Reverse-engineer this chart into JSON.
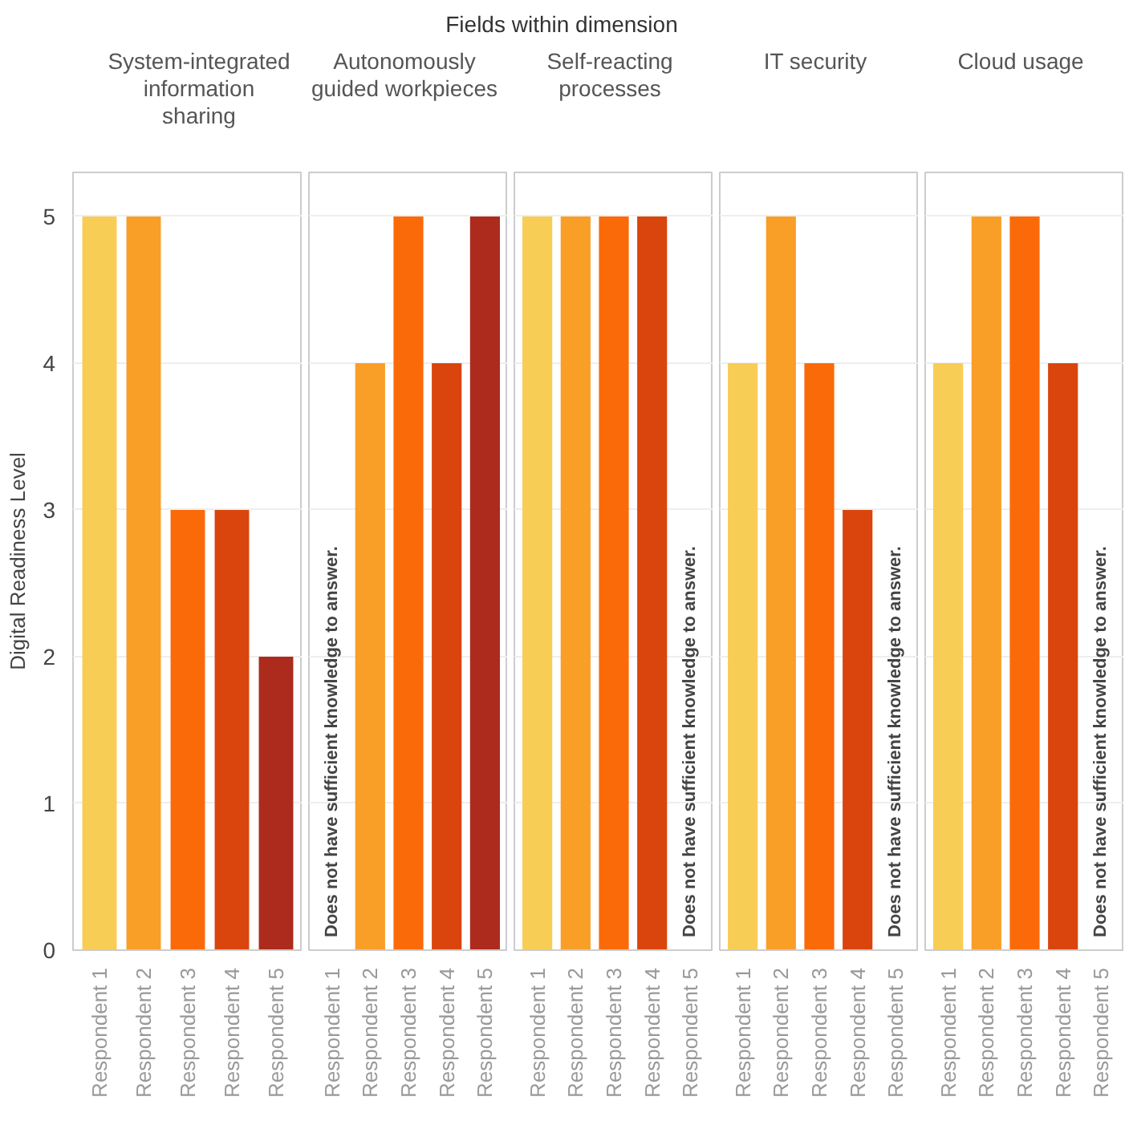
{
  "chart_data": [
    {
      "type": "bar",
      "title": "System-integrated information sharing",
      "ylabel": "Digital Readiness Level",
      "categories": [
        "Respondent 1",
        "Respondent 2",
        "Respondent 3",
        "Respondent 4",
        "Respondent 5"
      ],
      "values": [
        5,
        5,
        3,
        3,
        2
      ],
      "colors": [
        "#f8cd55",
        "#f99e27",
        "#fb6a09",
        "#d9450d",
        "#ad2b1c"
      ],
      "ylim": [
        0,
        5.3
      ],
      "yticks": [
        0,
        1,
        2,
        3,
        4,
        5
      ],
      "grid": "y",
      "annotations": [
        "Fields within dimension"
      ]
    },
    {
      "type": "bar",
      "title": "Autonomously guided workpieces",
      "categories": [
        "Respondent 1",
        "Respondent 2",
        "Respondent 3",
        "Respondent 4",
        "Respondent 5"
      ],
      "values": [
        null,
        4,
        5,
        4,
        5
      ],
      "colors": [
        "#f8cd55",
        "#f99e27",
        "#fb6a09",
        "#d9450d",
        "#ad2b1c"
      ],
      "ylim": [
        0,
        5.3
      ],
      "yticks": [
        0,
        1,
        2,
        3,
        4,
        5
      ],
      "grid": "y",
      "tick_labels": "x",
      "annotations": [
        "Does not have sufficient knowledge to answer."
      ]
    },
    {
      "type": "bar",
      "title": "Self-reacting processes",
      "categories": [
        "Respondent 1",
        "Respondent 2",
        "Respondent 3",
        "Respondent 4",
        "Respondent 5"
      ],
      "values": [
        5,
        5,
        5,
        5,
        null
      ],
      "colors": [
        "#f8cd55",
        "#f99e27",
        "#fb6a09",
        "#d9450d",
        "#ad2b1c"
      ],
      "ylim": [
        0,
        5.3
      ],
      "yticks": [
        0,
        1,
        2,
        3,
        4,
        5
      ],
      "grid": "y",
      "tick_labels": "x",
      "annotations": [
        "Does not have sufficient knowledge to answer."
      ]
    },
    {
      "type": "bar",
      "title": "IT security",
      "categories": [
        "Respondent 1",
        "Respondent 2",
        "Respondent 3",
        "Respondent 4",
        "Respondent 5"
      ],
      "values": [
        4,
        5,
        4,
        3,
        null
      ],
      "colors": [
        "#f8cd55",
        "#f99e27",
        "#fb6a09",
        "#d9450d",
        "#ad2b1c"
      ],
      "ylim": [
        0,
        5.3
      ],
      "yticks": [
        0,
        1,
        2,
        3,
        4,
        5
      ],
      "grid": "y",
      "tick_labels": "x",
      "annotations": [
        "Does not have sufficient knowledge to answer."
      ]
    },
    {
      "type": "bar",
      "title": "Cloud usage",
      "categories": [
        "Respondent 1",
        "Respondent 2",
        "Respondent 3",
        "Respondent 4",
        "Respondent 5"
      ],
      "values": [
        4,
        5,
        5,
        4,
        null
      ],
      "colors": [
        "#f8cd55",
        "#f99e27",
        "#fb6a09",
        "#d9450d",
        "#ad2b1c"
      ],
      "ylim": [
        0,
        5.3
      ],
      "yticks": [
        0,
        1,
        2,
        3,
        4,
        5
      ],
      "grid": "y",
      "tick_labels": "x",
      "annotations": [
        "Does not have sufficient knowledge to answer."
      ]
    }
  ]
}
